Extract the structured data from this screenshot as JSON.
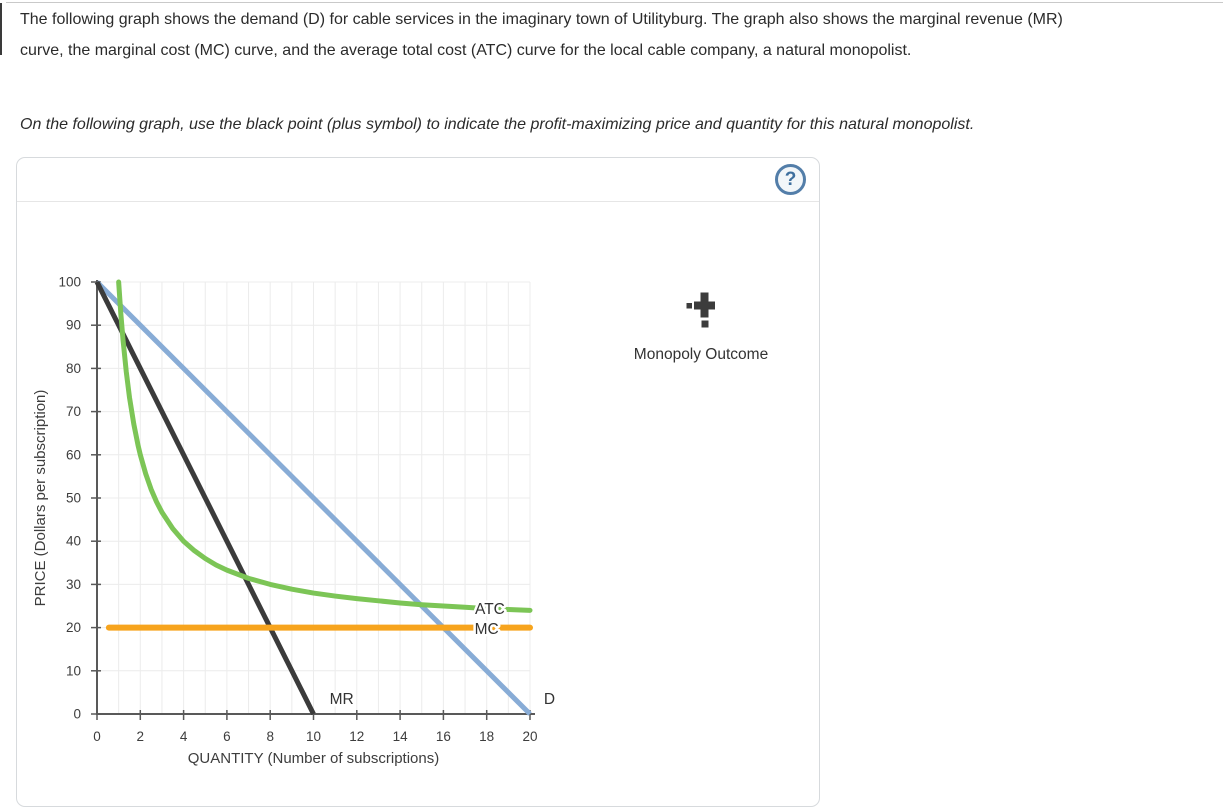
{
  "page": {
    "paragraph_line1": "The following graph shows the demand (D) for cable services in the imaginary town of Utilityburg. The graph also shows the marginal revenue (MR)",
    "paragraph_line2": "curve, the marginal cost (MC) curve, and the average total cost (ATC) curve for the local cable company, a natural monopolist.",
    "instruction": "On the following graph, use the black point (plus symbol) to indicate the profit-maximizing price and quantity for this natural monopolist."
  },
  "panel": {
    "help_glyph": "?",
    "tool": {
      "label": "Monopoly Outcome",
      "icon": "plus-point-icon",
      "color": "#3c3c3c"
    }
  },
  "chart_data": {
    "type": "line",
    "title": "",
    "xlabel": "QUANTITY (Number of subscriptions)",
    "ylabel": "PRICE (Dollars per subscription)",
    "xlim": [
      0,
      20
    ],
    "ylim": [
      0,
      100
    ],
    "xticks": [
      0,
      2,
      4,
      6,
      8,
      10,
      12,
      14,
      16,
      18,
      20
    ],
    "yticks": [
      0,
      10,
      20,
      30,
      40,
      50,
      60,
      70,
      80,
      90,
      100
    ],
    "grid": true,
    "grid_x_step": 1,
    "grid_y_step": 10,
    "grid_color": "#ececec",
    "axis_color": "#595959",
    "legend_position": "inline-labels",
    "series": [
      {
        "name": "D",
        "color": "#88acd6",
        "width": 5,
        "cap": "butt",
        "points": [
          [
            0,
            100
          ],
          [
            20,
            0
          ]
        ],
        "label_pos": [
          20.9,
          3.5
        ]
      },
      {
        "name": "MR",
        "color": "#3b3b3b",
        "width": 5,
        "cap": "butt",
        "points": [
          [
            0,
            100
          ],
          [
            10,
            0
          ]
        ],
        "label_pos": [
          11.3,
          3.5
        ]
      },
      {
        "name": "ATC",
        "color": "#7cc556",
        "width": 5,
        "cap": "round",
        "points": [
          [
            1,
            100
          ],
          [
            1.1,
            92.7
          ],
          [
            1.2,
            86.7
          ],
          [
            1.35,
            79.3
          ],
          [
            1.5,
            73.3
          ],
          [
            1.7,
            67.1
          ],
          [
            1.9,
            62.1
          ],
          [
            2,
            60
          ],
          [
            2.25,
            55.6
          ],
          [
            2.5,
            52
          ],
          [
            2.75,
            49.1
          ],
          [
            3,
            46.7
          ],
          [
            3.5,
            42.9
          ],
          [
            4,
            40
          ],
          [
            4.5,
            37.8
          ],
          [
            5,
            36
          ],
          [
            5.5,
            34.5
          ],
          [
            6,
            33.3
          ],
          [
            7,
            31.4
          ],
          [
            8,
            30
          ],
          [
            9,
            28.9
          ],
          [
            10,
            28
          ],
          [
            11,
            27.3
          ],
          [
            12,
            26.7
          ],
          [
            13,
            26.2
          ],
          [
            14,
            25.7
          ],
          [
            15,
            25.3
          ],
          [
            16,
            25
          ],
          [
            17,
            24.7
          ],
          [
            18,
            24.4
          ],
          [
            19,
            24.2
          ],
          [
            20,
            24
          ]
        ],
        "label_pos": [
          18.15,
          24.3
        ]
      },
      {
        "name": "MC",
        "color": "#f7a41d",
        "width": 6,
        "cap": "round",
        "points": [
          [
            0.55,
            20
          ],
          [
            20,
            20
          ]
        ],
        "label_pos": [
          18.0,
          19.7
        ]
      }
    ]
  }
}
